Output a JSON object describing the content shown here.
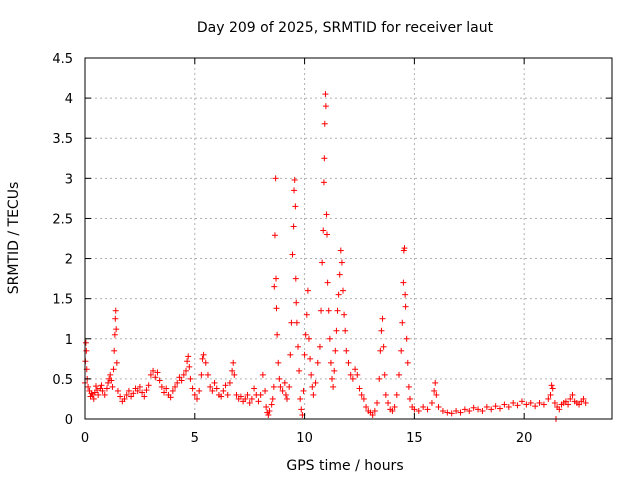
{
  "chart_data": {
    "type": "scatter",
    "title": "Day 209 of 2025, SRMTID for receiver laut",
    "xlabel": "GPS time / hours",
    "ylabel": "SRMTID / TECUs",
    "xlim": [
      0,
      24
    ],
    "ylim": [
      0,
      4.5
    ],
    "xticks": [
      0,
      5,
      10,
      15,
      20
    ],
    "xtick_labels": [
      "0",
      "5",
      "10",
      "15",
      "20"
    ],
    "yticks": [
      0,
      0.5,
      1,
      1.5,
      2,
      2.5,
      3,
      3.5,
      4,
      4.5
    ],
    "ytick_labels": [
      "0",
      "0.5",
      "1",
      "1.5",
      "2",
      "2.5",
      "3",
      "3.5",
      "4",
      "4.5"
    ],
    "grid": true,
    "marker": "+",
    "color": "#ff0000",
    "series": [
      {
        "name": "SRMTID",
        "points": [
          [
            0.0,
            0.45
          ],
          [
            0.02,
            0.72
          ],
          [
            0.04,
            0.95
          ],
          [
            0.06,
            0.85
          ],
          [
            0.08,
            0.62
          ],
          [
            0.1,
            0.5
          ],
          [
            0.14,
            0.4
          ],
          [
            0.2,
            0.35
          ],
          [
            0.25,
            0.28
          ],
          [
            0.3,
            0.32
          ],
          [
            0.35,
            0.3
          ],
          [
            0.4,
            0.25
          ],
          [
            0.45,
            0.33
          ],
          [
            0.5,
            0.41
          ],
          [
            0.55,
            0.36
          ],
          [
            0.6,
            0.3
          ],
          [
            0.7,
            0.38
          ],
          [
            0.75,
            0.42
          ],
          [
            0.8,
            0.35
          ],
          [
            0.9,
            0.3
          ],
          [
            1.0,
            0.38
          ],
          [
            1.05,
            0.45
          ],
          [
            1.1,
            0.5
          ],
          [
            1.15,
            0.55
          ],
          [
            1.2,
            0.48
          ],
          [
            1.25,
            0.4
          ],
          [
            1.3,
            0.62
          ],
          [
            1.33,
            0.85
          ],
          [
            1.36,
            1.05
          ],
          [
            1.38,
            1.25
          ],
          [
            1.4,
            1.35
          ],
          [
            1.42,
            1.12
          ],
          [
            1.45,
            0.7
          ],
          [
            1.5,
            0.35
          ],
          [
            1.6,
            0.28
          ],
          [
            1.7,
            0.22
          ],
          [
            1.8,
            0.25
          ],
          [
            1.9,
            0.3
          ],
          [
            2.0,
            0.35
          ],
          [
            2.1,
            0.28
          ],
          [
            2.2,
            0.32
          ],
          [
            2.3,
            0.38
          ],
          [
            2.4,
            0.35
          ],
          [
            2.5,
            0.4
          ],
          [
            2.6,
            0.33
          ],
          [
            2.7,
            0.28
          ],
          [
            2.8,
            0.36
          ],
          [
            2.9,
            0.42
          ],
          [
            3.0,
            0.55
          ],
          [
            3.1,
            0.6
          ],
          [
            3.2,
            0.52
          ],
          [
            3.3,
            0.58
          ],
          [
            3.4,
            0.48
          ],
          [
            3.5,
            0.4
          ],
          [
            3.6,
            0.33
          ],
          [
            3.7,
            0.38
          ],
          [
            3.8,
            0.3
          ],
          [
            3.9,
            0.27
          ],
          [
            4.0,
            0.35
          ],
          [
            4.1,
            0.4
          ],
          [
            4.2,
            0.45
          ],
          [
            4.3,
            0.52
          ],
          [
            4.4,
            0.48
          ],
          [
            4.5,
            0.55
          ],
          [
            4.6,
            0.6
          ],
          [
            4.65,
            0.72
          ],
          [
            4.7,
            0.78
          ],
          [
            4.75,
            0.65
          ],
          [
            4.8,
            0.5
          ],
          [
            4.9,
            0.38
          ],
          [
            5.0,
            0.3
          ],
          [
            5.1,
            0.25
          ],
          [
            5.2,
            0.35
          ],
          [
            5.3,
            0.55
          ],
          [
            5.35,
            0.75
          ],
          [
            5.4,
            0.8
          ],
          [
            5.5,
            0.7
          ],
          [
            5.6,
            0.55
          ],
          [
            5.7,
            0.4
          ],
          [
            5.8,
            0.35
          ],
          [
            5.9,
            0.45
          ],
          [
            6.0,
            0.38
          ],
          [
            6.1,
            0.3
          ],
          [
            6.2,
            0.28
          ],
          [
            6.3,
            0.35
          ],
          [
            6.4,
            0.42
          ],
          [
            6.5,
            0.3
          ],
          [
            6.6,
            0.45
          ],
          [
            6.7,
            0.6
          ],
          [
            6.75,
            0.7
          ],
          [
            6.8,
            0.55
          ],
          [
            6.9,
            0.3
          ],
          [
            7.0,
            0.25
          ],
          [
            7.1,
            0.28
          ],
          [
            7.2,
            0.22
          ],
          [
            7.3,
            0.25
          ],
          [
            7.4,
            0.3
          ],
          [
            7.5,
            0.2
          ],
          [
            7.6,
            0.25
          ],
          [
            7.7,
            0.38
          ],
          [
            7.8,
            0.3
          ],
          [
            7.9,
            0.22
          ],
          [
            8.0,
            0.3
          ],
          [
            8.1,
            0.55
          ],
          [
            8.2,
            0.35
          ],
          [
            8.25,
            0.15
          ],
          [
            8.3,
            0.08
          ],
          [
            8.35,
            0.05
          ],
          [
            8.4,
            0.1
          ],
          [
            8.5,
            0.18
          ],
          [
            8.55,
            0.25
          ],
          [
            8.6,
            0.4
          ],
          [
            8.62,
            1.65
          ],
          [
            8.65,
            2.29
          ],
          [
            8.68,
            3.0
          ],
          [
            8.7,
            1.75
          ],
          [
            8.72,
            1.38
          ],
          [
            8.75,
            1.05
          ],
          [
            8.8,
            0.7
          ],
          [
            8.85,
            0.5
          ],
          [
            8.9,
            0.4
          ],
          [
            9.0,
            0.35
          ],
          [
            9.1,
            0.45
          ],
          [
            9.15,
            0.3
          ],
          [
            9.2,
            0.25
          ],
          [
            9.3,
            0.4
          ],
          [
            9.35,
            0.8
          ],
          [
            9.4,
            1.2
          ],
          [
            9.45,
            2.05
          ],
          [
            9.5,
            2.4
          ],
          [
            9.52,
            2.85
          ],
          [
            9.55,
            2.98
          ],
          [
            9.58,
            2.65
          ],
          [
            9.6,
            1.75
          ],
          [
            9.62,
            1.45
          ],
          [
            9.65,
            1.2
          ],
          [
            9.7,
            0.9
          ],
          [
            9.75,
            0.6
          ],
          [
            9.8,
            0.25
          ],
          [
            9.85,
            0.12
          ],
          [
            9.9,
            0.05
          ],
          [
            9.95,
            0.35
          ],
          [
            10.0,
            0.8
          ],
          [
            10.05,
            1.05
          ],
          [
            10.1,
            1.3
          ],
          [
            10.15,
            1.6
          ],
          [
            10.2,
            1.0
          ],
          [
            10.25,
            0.75
          ],
          [
            10.3,
            0.55
          ],
          [
            10.35,
            0.4
          ],
          [
            10.4,
            0.3
          ],
          [
            10.5,
            0.45
          ],
          [
            10.6,
            0.7
          ],
          [
            10.7,
            0.9
          ],
          [
            10.75,
            1.35
          ],
          [
            10.8,
            1.95
          ],
          [
            10.85,
            2.35
          ],
          [
            10.88,
            2.95
          ],
          [
            10.9,
            3.25
          ],
          [
            10.92,
            3.68
          ],
          [
            10.95,
            4.05
          ],
          [
            10.97,
            3.9
          ],
          [
            11.0,
            2.55
          ],
          [
            11.02,
            2.3
          ],
          [
            11.05,
            1.7
          ],
          [
            11.1,
            1.35
          ],
          [
            11.15,
            1.0
          ],
          [
            11.2,
            0.7
          ],
          [
            11.25,
            0.5
          ],
          [
            11.3,
            0.4
          ],
          [
            11.35,
            0.6
          ],
          [
            11.4,
            0.85
          ],
          [
            11.45,
            1.1
          ],
          [
            11.5,
            1.35
          ],
          [
            11.55,
            1.55
          ],
          [
            11.6,
            1.8
          ],
          [
            11.65,
            2.1
          ],
          [
            11.7,
            1.95
          ],
          [
            11.75,
            1.6
          ],
          [
            11.8,
            1.3
          ],
          [
            11.85,
            1.1
          ],
          [
            11.9,
            0.85
          ],
          [
            12.0,
            0.7
          ],
          [
            12.1,
            0.55
          ],
          [
            12.2,
            0.5
          ],
          [
            12.3,
            0.62
          ],
          [
            12.4,
            0.55
          ],
          [
            12.5,
            0.38
          ],
          [
            12.6,
            0.3
          ],
          [
            12.7,
            0.25
          ],
          [
            12.8,
            0.15
          ],
          [
            12.9,
            0.1
          ],
          [
            13.0,
            0.08
          ],
          [
            13.1,
            0.05
          ],
          [
            13.2,
            0.1
          ],
          [
            13.3,
            0.2
          ],
          [
            13.4,
            0.5
          ],
          [
            13.45,
            0.85
          ],
          [
            13.5,
            1.1
          ],
          [
            13.55,
            1.25
          ],
          [
            13.6,
            0.9
          ],
          [
            13.65,
            0.55
          ],
          [
            13.7,
            0.3
          ],
          [
            13.8,
            0.2
          ],
          [
            13.9,
            0.12
          ],
          [
            14.0,
            0.1
          ],
          [
            14.1,
            0.15
          ],
          [
            14.2,
            0.3
          ],
          [
            14.3,
            0.55
          ],
          [
            14.4,
            0.85
          ],
          [
            14.45,
            1.2
          ],
          [
            14.5,
            1.7
          ],
          [
            14.52,
            2.1
          ],
          [
            14.55,
            2.13
          ],
          [
            14.58,
            1.55
          ],
          [
            14.6,
            1.4
          ],
          [
            14.65,
            1.0
          ],
          [
            14.7,
            0.7
          ],
          [
            14.75,
            0.4
          ],
          [
            14.8,
            0.25
          ],
          [
            14.9,
            0.15
          ],
          [
            15.0,
            0.12
          ],
          [
            15.2,
            0.1
          ],
          [
            15.4,
            0.15
          ],
          [
            15.6,
            0.12
          ],
          [
            15.8,
            0.2
          ],
          [
            15.9,
            0.35
          ],
          [
            15.95,
            0.45
          ],
          [
            16.0,
            0.3
          ],
          [
            16.1,
            0.15
          ],
          [
            16.3,
            0.1
          ],
          [
            16.5,
            0.08
          ],
          [
            16.7,
            0.07
          ],
          [
            16.9,
            0.1
          ],
          [
            17.1,
            0.08
          ],
          [
            17.3,
            0.12
          ],
          [
            17.5,
            0.1
          ],
          [
            17.7,
            0.14
          ],
          [
            17.9,
            0.12
          ],
          [
            18.1,
            0.1
          ],
          [
            18.3,
            0.15
          ],
          [
            18.5,
            0.12
          ],
          [
            18.7,
            0.16
          ],
          [
            18.9,
            0.13
          ],
          [
            19.1,
            0.18
          ],
          [
            19.3,
            0.15
          ],
          [
            19.5,
            0.2
          ],
          [
            19.7,
            0.17
          ],
          [
            19.9,
            0.22
          ],
          [
            20.1,
            0.18
          ],
          [
            20.3,
            0.2
          ],
          [
            20.5,
            0.16
          ],
          [
            20.7,
            0.2
          ],
          [
            20.9,
            0.18
          ],
          [
            21.1,
            0.25
          ],
          [
            21.2,
            0.3
          ],
          [
            21.25,
            0.42
          ],
          [
            21.3,
            0.38
          ],
          [
            21.4,
            0.2
          ],
          [
            21.45,
            0.0
          ],
          [
            21.5,
            0.15
          ],
          [
            21.6,
            0.12
          ],
          [
            21.7,
            0.18
          ],
          [
            21.8,
            0.2
          ],
          [
            21.9,
            0.22
          ],
          [
            22.0,
            0.18
          ],
          [
            22.1,
            0.25
          ],
          [
            22.2,
            0.3
          ],
          [
            22.3,
            0.22
          ],
          [
            22.4,
            0.2
          ],
          [
            22.5,
            0.18
          ],
          [
            22.6,
            0.22
          ],
          [
            22.7,
            0.25
          ],
          [
            22.8,
            0.2
          ]
        ]
      }
    ]
  }
}
